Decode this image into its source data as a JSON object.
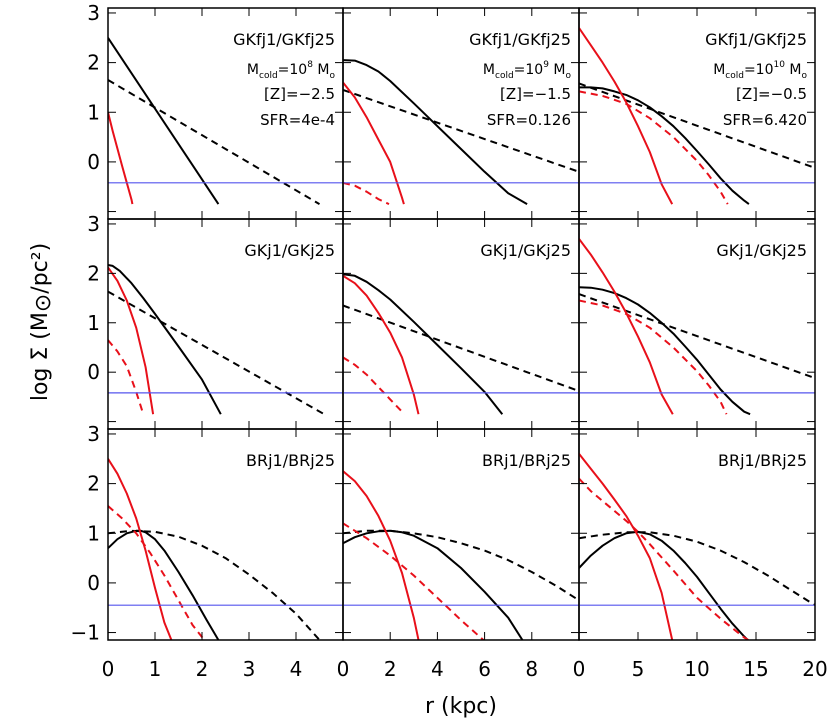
{
  "figure": {
    "ylabel": "log Σ (M⊙/pc²)",
    "xlabel": "r (kpc)"
  },
  "colors": {
    "gas": "#000000",
    "molecular": "#e8101a",
    "threshold": "#5555ee"
  },
  "chart_data": [
    {
      "type": "line",
      "row": 0,
      "col": 0,
      "label": "GKfj1/GKfj25",
      "mass_label": "10",
      "mass_exp": "8",
      "z_label": "[Z]=−2.5",
      "sfr_label": "SFR=4e-4",
      "xlim": [
        0,
        5
      ],
      "ylim": [
        -1.15,
        3.1
      ],
      "xticks": [
        0,
        1,
        2,
        3,
        4
      ],
      "yticks": [
        3,
        2,
        1,
        0
      ],
      "series": [
        {
          "color": "black",
          "dash": false,
          "x": [
            0,
            2.35
          ],
          "y": [
            2.5,
            -0.85
          ]
        },
        {
          "color": "black",
          "dash": true,
          "x": [
            0,
            4.5
          ],
          "y": [
            1.65,
            -0.85
          ]
        },
        {
          "color": "red",
          "dash": false,
          "x": [
            0,
            0.1,
            0.2,
            0.3,
            0.4,
            0.5,
            0.52
          ],
          "y": [
            1.0,
            0.62,
            0.27,
            -0.08,
            -0.42,
            -0.76,
            -0.85
          ]
        },
        {
          "color": "blue",
          "dash": false,
          "x": [
            0,
            5
          ],
          "y": [
            -0.42,
            -0.42
          ]
        }
      ]
    },
    {
      "type": "line",
      "row": 0,
      "col": 1,
      "label": "GKfj1/GKfj25",
      "mass_label": "10",
      "mass_exp": "9",
      "z_label": "[Z]=−1.5",
      "sfr_label": "SFR=0.126",
      "xlim": [
        0,
        10
      ],
      "ylim": [
        -1.15,
        3.1
      ],
      "xticks": [
        0,
        2,
        4,
        6,
        8
      ],
      "yticks": [],
      "series": [
        {
          "color": "black",
          "dash": false,
          "x": [
            0,
            0.5,
            1,
            1.5,
            2,
            3,
            4,
            5,
            6,
            7,
            7.8
          ],
          "y": [
            2.05,
            2.04,
            1.95,
            1.82,
            1.63,
            1.18,
            0.72,
            0.26,
            -0.2,
            -0.63,
            -0.85
          ]
        },
        {
          "color": "black",
          "dash": true,
          "x": [
            0,
            10
          ],
          "y": [
            1.45,
            -0.2
          ]
        },
        {
          "color": "red",
          "dash": false,
          "x": [
            0,
            0.5,
            1,
            1.5,
            2,
            2.5,
            2.58
          ],
          "y": [
            1.6,
            1.3,
            0.9,
            0.45,
            0.0,
            -0.72,
            -0.85
          ]
        },
        {
          "color": "red",
          "dash": true,
          "x": [
            0,
            0.5,
            1,
            1.5,
            1.95
          ],
          "y": [
            -0.42,
            -0.48,
            -0.6,
            -0.75,
            -0.85
          ]
        },
        {
          "color": "blue",
          "dash": false,
          "x": [
            0,
            10
          ],
          "y": [
            -0.42,
            -0.42
          ]
        }
      ]
    },
    {
      "type": "line",
      "row": 0,
      "col": 2,
      "label": "GKfj1/GKfj25",
      "mass_label": "10",
      "mass_exp": "10",
      "z_label": "[Z]=−0.5",
      "sfr_label": "SFR=6.420",
      "xlim": [
        0,
        20
      ],
      "ylim": [
        -1.15,
        3.1
      ],
      "xticks": [
        0,
        5,
        10,
        15
      ],
      "yticks": [],
      "series": [
        {
          "color": "black",
          "dash": false,
          "x": [
            0,
            1,
            2,
            3,
            4,
            5,
            6,
            7,
            8,
            9,
            10,
            11,
            12,
            13,
            14,
            14.4
          ],
          "y": [
            1.5,
            1.5,
            1.48,
            1.42,
            1.35,
            1.24,
            1.1,
            0.92,
            0.72,
            0.48,
            0.22,
            -0.05,
            -0.33,
            -0.58,
            -0.78,
            -0.85
          ]
        },
        {
          "color": "black",
          "dash": true,
          "x": [
            0,
            20
          ],
          "y": [
            1.58,
            -0.12
          ]
        },
        {
          "color": "red",
          "dash": false,
          "x": [
            0,
            1,
            2,
            3,
            4,
            5,
            6,
            7,
            7.9
          ],
          "y": [
            2.7,
            2.35,
            2.0,
            1.62,
            1.2,
            0.72,
            0.2,
            -0.45,
            -0.85
          ]
        },
        {
          "color": "red",
          "dash": true,
          "x": [
            0,
            2,
            4,
            6,
            8,
            10,
            11,
            12,
            12.6
          ],
          "y": [
            1.42,
            1.33,
            1.17,
            0.88,
            0.5,
            0.02,
            -0.27,
            -0.6,
            -0.85
          ]
        },
        {
          "color": "blue",
          "dash": false,
          "x": [
            0,
            20
          ],
          "y": [
            -0.42,
            -0.42
          ]
        }
      ]
    },
    {
      "type": "line",
      "row": 1,
      "col": 0,
      "label": "GKj1/GKj25",
      "xlim": [
        0,
        5
      ],
      "ylim": [
        -1.15,
        3.1
      ],
      "xticks": [
        0,
        1,
        2,
        3,
        4
      ],
      "yticks": [
        3,
        2,
        1,
        0
      ],
      "series": [
        {
          "color": "black",
          "dash": false,
          "x": [
            0,
            0.1,
            0.25,
            0.5,
            0.75,
            1,
            1.5,
            2,
            2.4
          ],
          "y": [
            2.17,
            2.15,
            2.05,
            1.8,
            1.5,
            1.18,
            0.52,
            -0.15,
            -0.85
          ]
        },
        {
          "color": "black",
          "dash": true,
          "x": [
            0,
            4.6
          ],
          "y": [
            1.63,
            -0.85
          ]
        },
        {
          "color": "red",
          "dash": false,
          "x": [
            0,
            0.2,
            0.4,
            0.6,
            0.8,
            0.96
          ],
          "y": [
            2.12,
            1.85,
            1.45,
            0.9,
            0.1,
            -0.85
          ]
        },
        {
          "color": "red",
          "dash": true,
          "x": [
            0,
            0.2,
            0.4,
            0.6,
            0.75
          ],
          "y": [
            0.65,
            0.42,
            0.12,
            -0.4,
            -0.85
          ]
        },
        {
          "color": "blue",
          "dash": false,
          "x": [
            0,
            5
          ],
          "y": [
            -0.42,
            -0.42
          ]
        }
      ]
    },
    {
      "type": "line",
      "row": 1,
      "col": 1,
      "label": "GKj1/GKj25",
      "xlim": [
        0,
        10
      ],
      "ylim": [
        -1.15,
        3.1
      ],
      "xticks": [
        0,
        2,
        4,
        6,
        8
      ],
      "yticks": [],
      "series": [
        {
          "color": "black",
          "dash": false,
          "x": [
            0,
            0.5,
            1,
            1.5,
            2,
            3,
            4,
            5,
            6,
            6.75
          ],
          "y": [
            1.98,
            1.95,
            1.83,
            1.66,
            1.47,
            1.02,
            0.55,
            0.08,
            -0.4,
            -0.85
          ]
        },
        {
          "color": "black",
          "dash": true,
          "x": [
            0,
            10
          ],
          "y": [
            1.35,
            -0.38
          ]
        },
        {
          "color": "red",
          "dash": false,
          "x": [
            0,
            0.5,
            1,
            1.5,
            2,
            2.5,
            3,
            3.2
          ],
          "y": [
            1.95,
            1.8,
            1.55,
            1.2,
            0.8,
            0.3,
            -0.45,
            -0.85
          ]
        },
        {
          "color": "red",
          "dash": true,
          "x": [
            0,
            0.5,
            1,
            1.5,
            2,
            2.6
          ],
          "y": [
            0.3,
            0.15,
            -0.05,
            -0.3,
            -0.55,
            -0.85
          ]
        },
        {
          "color": "blue",
          "dash": false,
          "x": [
            0,
            10
          ],
          "y": [
            -0.42,
            -0.42
          ]
        }
      ]
    },
    {
      "type": "line",
      "row": 1,
      "col": 2,
      "label": "GKj1/GKj25",
      "xlim": [
        0,
        20
      ],
      "ylim": [
        -1.15,
        3.1
      ],
      "xticks": [
        0,
        5,
        10,
        15
      ],
      "yticks": [],
      "series": [
        {
          "color": "black",
          "dash": false,
          "x": [
            0,
            1,
            2,
            3,
            4,
            5,
            6,
            7,
            8,
            9,
            10,
            11,
            12,
            13,
            14,
            14.5
          ],
          "y": [
            1.72,
            1.71,
            1.67,
            1.6,
            1.5,
            1.37,
            1.2,
            1.0,
            0.78,
            0.52,
            0.25,
            -0.05,
            -0.35,
            -0.6,
            -0.8,
            -0.85
          ]
        },
        {
          "color": "black",
          "dash": true,
          "x": [
            0,
            20
          ],
          "y": [
            1.58,
            -0.12
          ]
        },
        {
          "color": "red",
          "dash": false,
          "x": [
            0,
            1,
            2,
            3,
            4,
            5,
            6,
            7,
            7.95
          ],
          "y": [
            2.7,
            2.38,
            2.02,
            1.63,
            1.2,
            0.72,
            0.2,
            -0.45,
            -0.85
          ]
        },
        {
          "color": "red",
          "dash": true,
          "x": [
            0,
            2,
            4,
            6,
            8,
            10,
            11,
            12,
            12.5
          ],
          "y": [
            1.45,
            1.35,
            1.18,
            0.9,
            0.5,
            0.02,
            -0.27,
            -0.6,
            -0.85
          ]
        },
        {
          "color": "blue",
          "dash": false,
          "x": [
            0,
            20
          ],
          "y": [
            -0.42,
            -0.42
          ]
        }
      ]
    },
    {
      "type": "line",
      "row": 2,
      "col": 0,
      "label": "BRj1/BRj25",
      "xlim": [
        0,
        5
      ],
      "ylim": [
        -1.15,
        3.1
      ],
      "xticks": [
        0,
        1,
        2,
        3,
        4
      ],
      "yticks": [
        3,
        2,
        1,
        0,
        -1
      ],
      "series": [
        {
          "color": "black",
          "dash": false,
          "x": [
            0,
            0.2,
            0.4,
            0.6,
            0.7,
            0.8,
            1,
            1.2,
            1.5,
            1.8,
            2.1,
            2.35
          ],
          "y": [
            0.7,
            0.88,
            1.0,
            1.05,
            1.05,
            1.02,
            0.88,
            0.65,
            0.22,
            -0.25,
            -0.75,
            -1.15
          ]
        },
        {
          "color": "black",
          "dash": true,
          "x": [
            0,
            0.5,
            1,
            1.5,
            2,
            2.5,
            3,
            3.5,
            4,
            4.5
          ],
          "y": [
            1.0,
            1.05,
            1.03,
            0.93,
            0.75,
            0.5,
            0.17,
            -0.2,
            -0.62,
            -1.15
          ]
        },
        {
          "color": "red",
          "dash": false,
          "x": [
            0,
            0.2,
            0.4,
            0.6,
            0.8,
            1,
            1.2,
            1.35
          ],
          "y": [
            2.5,
            2.2,
            1.8,
            1.3,
            0.65,
            -0.1,
            -0.8,
            -1.15
          ]
        },
        {
          "color": "red",
          "dash": true,
          "x": [
            0,
            0.3,
            0.6,
            0.9,
            1.2,
            1.5,
            1.8,
            2.05
          ],
          "y": [
            1.55,
            1.3,
            1.0,
            0.6,
            0.15,
            -0.35,
            -0.85,
            -1.15
          ]
        },
        {
          "color": "blue",
          "dash": false,
          "x": [
            0,
            5
          ],
          "y": [
            -0.45,
            -0.45
          ]
        }
      ]
    },
    {
      "type": "line",
      "row": 2,
      "col": 1,
      "label": "BRj1/BRj25",
      "xlim": [
        0,
        10
      ],
      "ylim": [
        -1.15,
        3.1
      ],
      "xticks": [
        0,
        2,
        4,
        6,
        8
      ],
      "yticks": [],
      "series": [
        {
          "color": "black",
          "dash": false,
          "x": [
            0,
            0.5,
            1,
            1.5,
            2,
            2.5,
            3,
            4,
            5,
            6,
            7,
            7.6
          ],
          "y": [
            0.8,
            0.92,
            1.0,
            1.04,
            1.05,
            1.02,
            0.95,
            0.7,
            0.3,
            -0.18,
            -0.7,
            -1.15
          ]
        },
        {
          "color": "black",
          "dash": true,
          "x": [
            0,
            1,
            2,
            3,
            4,
            5,
            6,
            7,
            8,
            9,
            10
          ],
          "y": [
            1.0,
            1.05,
            1.05,
            1.0,
            0.92,
            0.8,
            0.65,
            0.46,
            0.22,
            -0.05,
            -0.35
          ]
        },
        {
          "color": "red",
          "dash": false,
          "x": [
            0,
            0.5,
            1,
            1.5,
            2,
            2.5,
            3,
            3.2
          ],
          "y": [
            2.25,
            2.05,
            1.75,
            1.35,
            0.85,
            0.2,
            -0.7,
            -1.15
          ]
        },
        {
          "color": "red",
          "dash": true,
          "x": [
            0,
            1,
            2,
            3,
            4,
            5,
            5.95
          ],
          "y": [
            1.2,
            0.9,
            0.55,
            0.15,
            -0.3,
            -0.75,
            -1.15
          ]
        },
        {
          "color": "blue",
          "dash": false,
          "x": [
            0,
            10
          ],
          "y": [
            -0.45,
            -0.45
          ]
        }
      ]
    },
    {
      "type": "line",
      "row": 2,
      "col": 2,
      "label": "BRj1/BRj25",
      "xlim": [
        0,
        20
      ],
      "ylim": [
        -1.15,
        3.1
      ],
      "xticks": [
        0,
        5,
        10,
        15,
        20
      ],
      "yticks": [],
      "series": [
        {
          "color": "black",
          "dash": false,
          "x": [
            0,
            1,
            2,
            3,
            4,
            5,
            6,
            7,
            8,
            9,
            10,
            11,
            12,
            13,
            14,
            14.3
          ],
          "y": [
            0.3,
            0.55,
            0.75,
            0.9,
            1.0,
            1.03,
            0.98,
            0.85,
            0.65,
            0.4,
            0.12,
            -0.2,
            -0.52,
            -0.82,
            -1.08,
            -1.15
          ]
        },
        {
          "color": "black",
          "dash": true,
          "x": [
            0,
            2,
            4,
            6,
            8,
            10,
            12,
            14,
            16,
            18,
            20
          ],
          "y": [
            0.9,
            0.97,
            1.02,
            1.02,
            0.95,
            0.83,
            0.65,
            0.42,
            0.15,
            -0.15,
            -0.45
          ]
        },
        {
          "color": "red",
          "dash": false,
          "x": [
            0,
            1,
            2,
            3,
            4,
            5,
            6,
            7,
            7.9
          ],
          "y": [
            2.6,
            2.3,
            2.0,
            1.68,
            1.35,
            0.95,
            0.5,
            -0.2,
            -1.15
          ]
        },
        {
          "color": "red",
          "dash": true,
          "x": [
            0,
            1,
            2,
            3,
            4,
            5,
            6,
            8,
            10,
            12,
            14,
            14.35
          ],
          "y": [
            2.1,
            1.85,
            1.65,
            1.45,
            1.25,
            1.03,
            0.78,
            0.25,
            -0.3,
            -0.72,
            -1.1,
            -1.15
          ]
        },
        {
          "color": "blue",
          "dash": false,
          "x": [
            0,
            20
          ],
          "y": [
            -0.45,
            -0.45
          ]
        }
      ]
    }
  ]
}
